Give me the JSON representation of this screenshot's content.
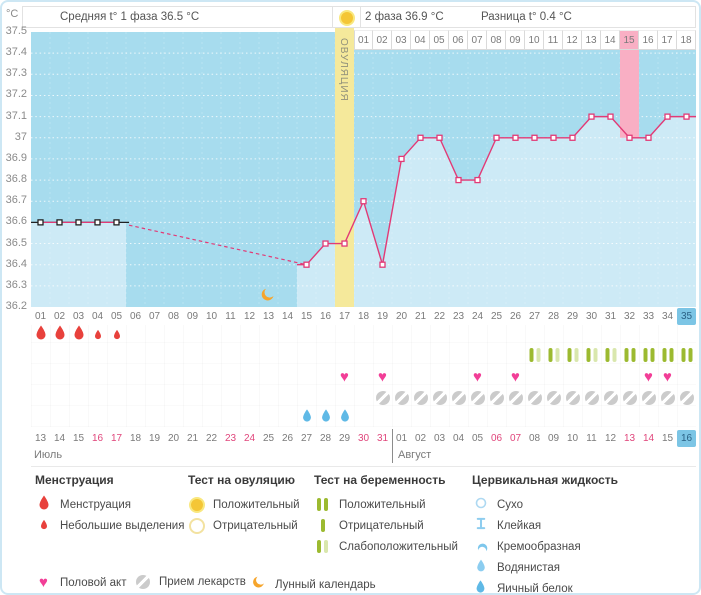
{
  "header": {
    "unit": "°C",
    "phase1_avg": "Средняя t° 1 фаза 36.5 °C",
    "phase2_avg": "2 фаза 36.9 °C",
    "difference": "Разница t° 0.4 °C"
  },
  "chart_data": {
    "type": "line",
    "ylabel": "°C",
    "ylim": [
      36.2,
      37.5
    ],
    "yticks": [
      "37.5",
      "37.4",
      "37.3",
      "37.2",
      "37.1",
      "37",
      "36.9",
      "36.8",
      "36.7",
      "36.6",
      "36.5",
      "36.4",
      "36.3",
      "36.2"
    ],
    "x_days": [
      1,
      2,
      3,
      4,
      5,
      6,
      7,
      8,
      9,
      10,
      11,
      12,
      13,
      14,
      15,
      16,
      17,
      18,
      19,
      20,
      21,
      22,
      23,
      24,
      25,
      26,
      27,
      28,
      29,
      30,
      31,
      32,
      33,
      34,
      35
    ],
    "temps": [
      36.6,
      36.6,
      36.6,
      36.6,
      36.6,
      null,
      null,
      null,
      null,
      null,
      null,
      null,
      null,
      null,
      36.4,
      36.5,
      36.5,
      36.7,
      36.4,
      36.9,
      37.0,
      37.0,
      36.8,
      36.8,
      37.0,
      37.0,
      37.0,
      37.0,
      37.0,
      37.1,
      37.1,
      37.0,
      37.0,
      37.1,
      37.1
    ],
    "grid": true,
    "ovulation_day": 17,
    "ovulation_label": "ОВУЛЯЦИЯ",
    "expected_period_day": 32,
    "dpo_labels": [
      "01",
      "02",
      "03",
      "04",
      "05",
      "06",
      "07",
      "08",
      "09",
      "10",
      "11",
      "12",
      "13",
      "14",
      "15",
      "16",
      "17",
      "18"
    ],
    "dpo_highlighted": "15",
    "lunar_calendar_day": 13,
    "current_cycle_day": 35
  },
  "events": {
    "menstruation_heavy_days": [
      1,
      2,
      3
    ],
    "menstruation_light_days": [
      4,
      5
    ],
    "pregnancy_test_weak_positive_days": [
      27,
      28,
      29,
      30,
      31
    ],
    "pregnancy_test_positive_days": [
      32,
      33,
      34,
      35
    ],
    "intercourse_days": [
      17,
      19,
      24,
      26,
      33,
      34
    ],
    "medication_days": [
      19,
      20,
      21,
      22,
      23,
      24,
      25,
      26,
      27,
      28,
      29,
      30,
      31,
      32,
      33,
      34,
      35
    ],
    "cervical_fluid_eggwhite_days": [
      15,
      16,
      17
    ]
  },
  "calendar": {
    "months": [
      {
        "name": "Июль",
        "dates": [
          "13",
          "14",
          "15",
          "16",
          "17",
          "18",
          "19",
          "20",
          "21",
          "22",
          "23",
          "24",
          "25",
          "26",
          "27",
          "28",
          "29",
          "30",
          "31"
        ],
        "weekend_dates": [
          "16",
          "17",
          "23",
          "24",
          "30",
          "31"
        ]
      },
      {
        "name": "Август",
        "dates": [
          "01",
          "02",
          "03",
          "04",
          "05",
          "06",
          "07",
          "08",
          "09",
          "10",
          "11",
          "12",
          "13",
          "14",
          "15",
          "16"
        ],
        "weekend_dates": [
          "06",
          "07",
          "13",
          "14"
        ],
        "today_date": "16"
      }
    ]
  },
  "legend": {
    "groups": [
      {
        "title": "Менструация",
        "items": [
          {
            "icon": "drop-red-large",
            "label": "Менструация"
          },
          {
            "icon": "drop-red-small",
            "label": "Небольшие выделения"
          }
        ]
      },
      {
        "title": "Тест на овуляцию",
        "items": [
          {
            "icon": "circle-yellow-filled",
            "label": "Положительный"
          },
          {
            "icon": "circle-yellow-outline",
            "label": "Отрицательный"
          }
        ]
      },
      {
        "title": "Тест на беременность",
        "items": [
          {
            "icon": "bars-positive",
            "label": "Положительный"
          },
          {
            "icon": "bar-negative",
            "label": "Отрицательный"
          },
          {
            "icon": "bars-weak-positive",
            "label": "Слабоположительный"
          }
        ]
      },
      {
        "title": "Цервикальная жидкость",
        "items": [
          {
            "icon": "fluid-dry",
            "label": "Сухо"
          },
          {
            "icon": "fluid-sticky",
            "label": "Клейкая"
          },
          {
            "icon": "fluid-creamy",
            "label": "Кремообразная"
          },
          {
            "icon": "fluid-watery",
            "label": "Водянистая"
          },
          {
            "icon": "fluid-eggwhite",
            "label": "Яичный белок"
          }
        ]
      }
    ],
    "footer_items": [
      {
        "icon": "heart-pink",
        "label": "Половой акт"
      },
      {
        "icon": "pill-gray",
        "label": "Прием лекарств"
      },
      {
        "icon": "moon-orange",
        "label": "Лунный календарь"
      }
    ]
  },
  "colors": {
    "chart_bg": "#a7dcee",
    "chart_fill": "#cdeaf6",
    "line": "#e23a76",
    "ovulation_column": "#f5e99b",
    "period_pink": "#f9afc4",
    "today_teal": "#7cc5e5",
    "test_yellow": "#f4c636",
    "preg_bar_dark": "#9cba30",
    "preg_bar_light": "#d9e7ad",
    "heart_pink": "#f23e97",
    "blood_red": "#e8413c",
    "pill_gray": "#cbcbcb",
    "moon_orange": "#f6a52c",
    "cervical_blue": "#5fb9e6",
    "weekend_text": "#e0457b"
  }
}
